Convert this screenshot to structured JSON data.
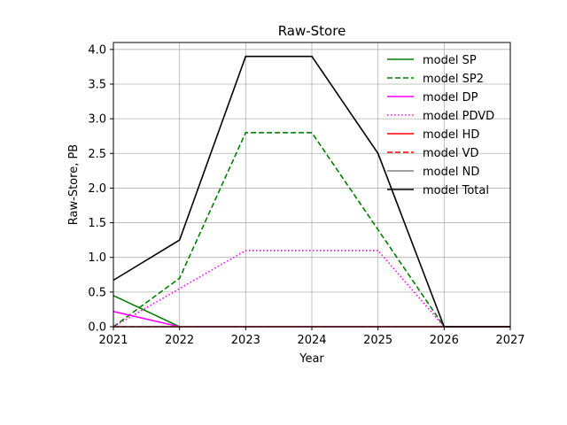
{
  "chart_data": {
    "type": "line",
    "title": "Raw-Store",
    "xlabel": "Year",
    "ylabel": "Raw-Store, PB",
    "xlim": [
      2021,
      2027
    ],
    "ylim": [
      0,
      4.1
    ],
    "xticks": [
      2021,
      2022,
      2023,
      2024,
      2025,
      2026,
      2027
    ],
    "xtick_labels": [
      "2021",
      "2022",
      "2023",
      "2024",
      "2025",
      "2026",
      "2027"
    ],
    "yticks": [
      0,
      0.5,
      1,
      1.5,
      2,
      2.5,
      3,
      3.5,
      4
    ],
    "ytick_labels": [
      "0.0",
      "0.5",
      "1.0",
      "1.5",
      "2.0",
      "2.5",
      "3.0",
      "3.5",
      "4.0"
    ],
    "grid": true,
    "legend_position": "top-right",
    "series": [
      {
        "name": "model SP",
        "color": "#008000",
        "dash": "solid",
        "x": [
          2021,
          2022,
          2023,
          2024,
          2025,
          2026,
          2027
        ],
        "y": [
          0.45,
          0.0,
          0.0,
          0.0,
          0.0,
          0.0,
          0.0
        ]
      },
      {
        "name": "model SP2",
        "color": "#008000",
        "dash": "dashed",
        "x": [
          2021,
          2022,
          2023,
          2024,
          2025,
          2026,
          2027
        ],
        "y": [
          0.0,
          0.7,
          2.8,
          2.8,
          1.4,
          0.0,
          0.0
        ]
      },
      {
        "name": "model DP",
        "color": "#ff00ff",
        "dash": "solid",
        "x": [
          2021,
          2022,
          2023,
          2024,
          2025,
          2026,
          2027
        ],
        "y": [
          0.22,
          0.0,
          0.0,
          0.0,
          0.0,
          0.0,
          0.0
        ]
      },
      {
        "name": "model PDVD",
        "color": "#ff00ff",
        "dash": "dotted",
        "x": [
          2021,
          2022,
          2023,
          2024,
          2025,
          2026,
          2027
        ],
        "y": [
          0.0,
          0.55,
          1.1,
          1.1,
          1.1,
          0.0,
          0.0
        ]
      },
      {
        "name": "model HD",
        "color": "#ff0000",
        "dash": "solid",
        "x": [
          2021,
          2022,
          2023,
          2024,
          2025,
          2026,
          2027
        ],
        "y": [
          0.0,
          0.0,
          0.0,
          0.0,
          0.0,
          0.0,
          0.0
        ]
      },
      {
        "name": "model VD",
        "color": "#ff0000",
        "dash": "dashed",
        "x": [
          2021,
          2022,
          2023,
          2024,
          2025,
          2026,
          2027
        ],
        "y": [
          0.0,
          0.0,
          0.0,
          0.0,
          0.0,
          0.0,
          0.0
        ]
      },
      {
        "name": "model ND",
        "color": "#808080",
        "dash": "solid",
        "x": [
          2021,
          2022,
          2023,
          2024,
          2025,
          2026,
          2027
        ],
        "y": [
          0.0,
          0.0,
          0.0,
          0.0,
          0.0,
          0.0,
          0.0
        ]
      },
      {
        "name": "model Total",
        "color": "#000000",
        "dash": "solid",
        "x": [
          2021,
          2022,
          2023,
          2024,
          2025,
          2026,
          2027
        ],
        "y": [
          0.67,
          1.25,
          3.9,
          3.9,
          2.5,
          0.0,
          0.0
        ]
      }
    ]
  }
}
